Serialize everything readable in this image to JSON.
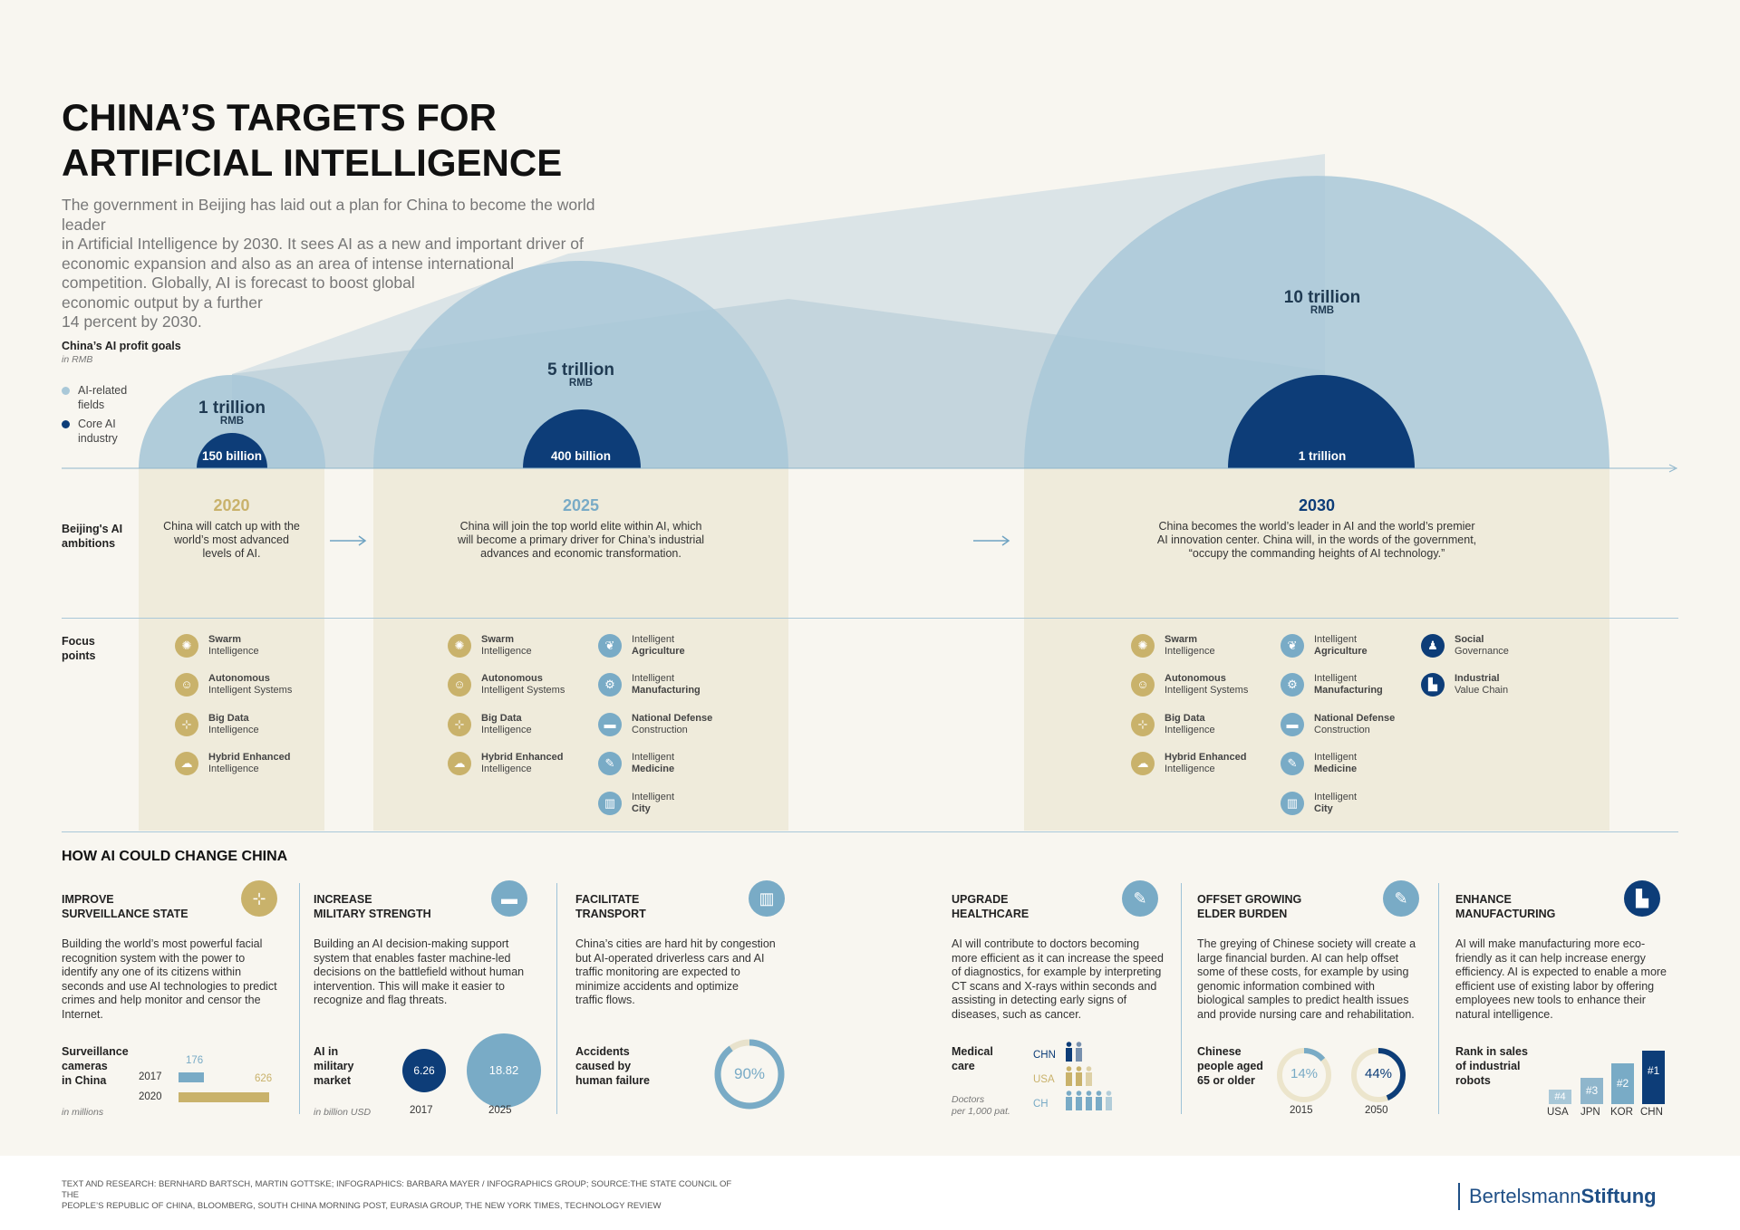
{
  "title": [
    "CHINA’S TARGETS FOR",
    "ARTIFICIAL INTELLIGENCE"
  ],
  "intro": [
    "The government in Beijing has laid out a plan for China to become the world leader",
    "in Artificial Intelligence by 2030. It sees AI as a new and important driver of",
    "economic expansion and also as an area of intense international",
    "competition. Globally, AI is forecast to boost global",
    "economic output by a further",
    "14 percent by 2030."
  ],
  "profit_goals": {
    "title": "China’s AI profit goals",
    "unit": "in RMB",
    "legend": [
      {
        "label1": "AI-related",
        "label2": "fields",
        "color": "#a9c8d8"
      },
      {
        "label1": "Core AI",
        "label2": "industry",
        "color": "#0d3d78"
      }
    ]
  },
  "chart_data": {
    "type": "bubble",
    "unit": "RMB",
    "categories": [
      "2020",
      "2025",
      "2030"
    ],
    "series": [
      {
        "name": "AI-related fields",
        "values": [
          "1 trillion",
          "5 trillion",
          "10 trillion"
        ]
      },
      {
        "name": "Core AI industry",
        "values": [
          "150 billion",
          "400 billion",
          "1 trillion"
        ]
      }
    ]
  },
  "bubbles": [
    {
      "big": "1 trillion",
      "unit": "RMB",
      "core": "150 billion"
    },
    {
      "big": "5 trillion",
      "unit": "RMB",
      "core": "400 billion"
    },
    {
      "big": "10 trillion",
      "unit": "RMB",
      "core": "1 trillion"
    }
  ],
  "ambitions_label": [
    "Beijing's AI",
    "ambitions"
  ],
  "focus_label": [
    "Focus",
    "points"
  ],
  "years": [
    {
      "year": "2020",
      "color": "#c9b26b",
      "text": [
        "China will catch up with the",
        "world’s most advanced",
        "levels of AI."
      ]
    },
    {
      "year": "2025",
      "color": "#79abc6",
      "text": [
        "China will join the top world elite within AI, which",
        "will become a primary driver for China’s industrial",
        "advances and economic transformation."
      ]
    },
    {
      "year": "2030",
      "color": "#0d3d78",
      "text": [
        "China becomes the world’s leader in AI and the world’s premier",
        "AI innovation center. China will, in the words of the government,",
        "“occupy the commanding heights of AI technology.”"
      ]
    }
  ],
  "focus_items": {
    "swarm": [
      "Swarm",
      "Intelligence"
    ],
    "auto": [
      "Autonomous",
      "Intelligent Systems"
    ],
    "bigdata": [
      "Big Data",
      "Intelligence"
    ],
    "hybrid": [
      "Hybrid Enhanced",
      "Intelligence"
    ],
    "agri": [
      "Intelligent",
      "Agriculture"
    ],
    "manu": [
      "Intelligent",
      "Manufacturing"
    ],
    "defense": [
      "National Defense",
      "Construction"
    ],
    "med": [
      "Intelligent",
      "Medicine"
    ],
    "city": [
      "Intelligent",
      "City"
    ],
    "social": [
      "Social",
      "Governance"
    ],
    "value": [
      "Industrial",
      "Value Chain"
    ]
  },
  "how_title": "HOW AI COULD CHANGE CHINA",
  "columns": {
    "surv": {
      "title": [
        "IMPROVE",
        "SURVEILLANCE STATE"
      ],
      "body": [
        "Building the world’s most powerful facial",
        "recognition system with the power to",
        "identify any one of its citizens within",
        "seconds and use AI technologies to predict",
        "crimes and help monitor and censor the",
        "Internet."
      ],
      "stat_label": [
        "Surveillance",
        "cameras",
        "in China"
      ],
      "unit": "in millions",
      "bars": [
        {
          "year": "2017",
          "value": 176
        },
        {
          "year": "2020",
          "value": 626
        }
      ]
    },
    "mil": {
      "title": [
        "INCREASE",
        "MILITARY STRENGTH"
      ],
      "body": [
        "Building an AI decision-making support",
        "system that enables faster machine-led",
        "decisions on the battlefield without human",
        "intervention. This will make it easier to",
        "recognize and flag threats."
      ],
      "stat_label": [
        "AI in",
        "military",
        "market"
      ],
      "unit": "in billion USD",
      "circles": [
        {
          "year": "2017",
          "value": "6.26"
        },
        {
          "year": "2025",
          "value": "18.82"
        }
      ]
    },
    "trans": {
      "title": [
        "FACILITATE",
        "TRANSPORT"
      ],
      "body": [
        "China’s cities are hard hit by congestion",
        "but AI-operated driverless cars and AI",
        "traffic monitoring are expected to",
        "minimize accidents and optimize",
        "traffic flows."
      ],
      "stat_label": [
        "Accidents",
        "caused by",
        "human failure"
      ],
      "value": "90%",
      "fraction": 0.9
    },
    "health": {
      "title": [
        "UPGRADE",
        "HEALTHCARE"
      ],
      "body": [
        "AI will contribute to doctors becoming",
        "more efficient as it can increase the speed",
        "of diagnostics, for example by interpreting",
        "CT scans and X-rays within seconds and",
        "assisting in detecting early signs of",
        "diseases, such as cancer."
      ],
      "stat_label": [
        "Medical",
        "care"
      ],
      "note": [
        "Doctors",
        "per 1,000 pat."
      ],
      "countries": [
        {
          "name": "CHN",
          "count": 1.5
        },
        {
          "name": "USA",
          "count": 2.5
        },
        {
          "name": "CH",
          "count": 4.2
        }
      ]
    },
    "elder": {
      "title": [
        "OFFSET GROWING",
        "ELDER BURDEN"
      ],
      "body": [
        "The greying of Chinese society will create a",
        "large financial burden. AI can help offset",
        "some of these costs, for example by using",
        "genomic information combined with",
        "biological samples to predict health issues",
        "and provide nursing care and rehabilitation."
      ],
      "stat_label": [
        "Chinese",
        "people aged",
        "65 or older"
      ],
      "values": [
        {
          "year": "2015",
          "value": "14%",
          "fraction": 0.14
        },
        {
          "year": "2050",
          "value": "44%",
          "fraction": 0.44
        }
      ]
    },
    "manu": {
      "title": [
        "ENHANCE",
        "MANUFACTURING"
      ],
      "body": [
        "AI will make manufacturing more eco-",
        "friendly as it can help increase energy",
        "efficiency. AI is expected to enable a more",
        "efficient use of existing labor by offering",
        "employees new tools to enhance their",
        "natural intelligence."
      ],
      "stat_label": [
        "Rank in sales",
        "of industrial",
        "robots"
      ],
      "ranks": [
        {
          "country": "USA",
          "rank": "#4"
        },
        {
          "country": "JPN",
          "rank": "#3"
        },
        {
          "country": "KOR",
          "rank": "#2"
        },
        {
          "country": "CHN",
          "rank": "#1"
        }
      ]
    }
  },
  "credits": [
    "TEXT AND RESEARCH: BERNHARD BARTSCH, MARTIN GOTTSKE; INFOGRAPHICS: BARBARA MAYER / INFOGRAPHICS GROUP; SOURCE:THE STATE COUNCIL OF THE",
    "PEOPLE’S REPUBLIC OF CHINA, BLOOMBERG, SOUTH CHINA MORNING POST, EURASIA GROUP, THE NEW YORK TIMES, TECHNOLOGY REVIEW"
  ],
  "brand": {
    "part1": "Bertelsmann",
    "part2": "Stiftung"
  }
}
